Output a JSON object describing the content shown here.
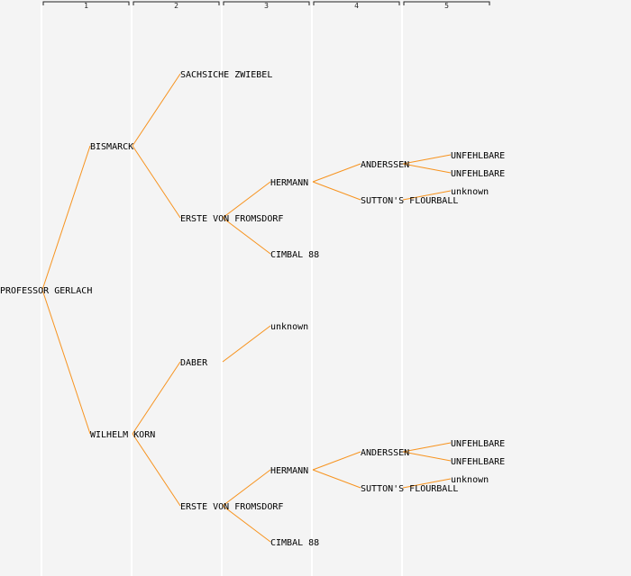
{
  "colors": {
    "background": "#f4f4f4",
    "edge": "#f7931e",
    "generation_line": "#ffffff",
    "text": "#000000"
  },
  "generations": [
    "1",
    "2",
    "3",
    "4",
    "5"
  ],
  "pedigree": {
    "name": "PROFESSOR GERLACH",
    "parents": [
      {
        "name": "BISMARCK",
        "parents": [
          {
            "name": "SACHSICHE ZWIEBEL",
            "parents": []
          },
          {
            "name": "ERSTE VON FROMSDORF",
            "parents": [
              {
                "name": "HERMANN",
                "parents": [
                  {
                    "name": "ANDERSSEN",
                    "parents": [
                      {
                        "name": "UNFEHLBARE",
                        "parents": []
                      },
                      {
                        "name": "UNFEHLBARE",
                        "parents": []
                      }
                    ]
                  },
                  {
                    "name": "SUTTON'S FLOURBALL",
                    "parents": [
                      {
                        "name": "unknown",
                        "parents": []
                      }
                    ]
                  }
                ]
              },
              {
                "name": "CIMBAL 88",
                "parents": []
              }
            ]
          }
        ]
      },
      {
        "name": "WILHELM KORN",
        "parents": [
          {
            "name": "DABER",
            "parents": [
              {
                "name": "unknown",
                "parents": []
              }
            ]
          },
          {
            "name": "ERSTE VON FROMSDORF",
            "parents": [
              {
                "name": "HERMANN",
                "parents": [
                  {
                    "name": "ANDERSSEN",
                    "parents": [
                      {
                        "name": "UNFEHLBARE",
                        "parents": []
                      },
                      {
                        "name": "UNFEHLBARE",
                        "parents": []
                      }
                    ]
                  },
                  {
                    "name": "SUTTON'S FLOURBALL",
                    "parents": [
                      {
                        "name": "unknown",
                        "parents": []
                      }
                    ]
                  }
                ]
              },
              {
                "name": "CIMBAL 88",
                "parents": []
              }
            ]
          }
        ]
      }
    ]
  }
}
